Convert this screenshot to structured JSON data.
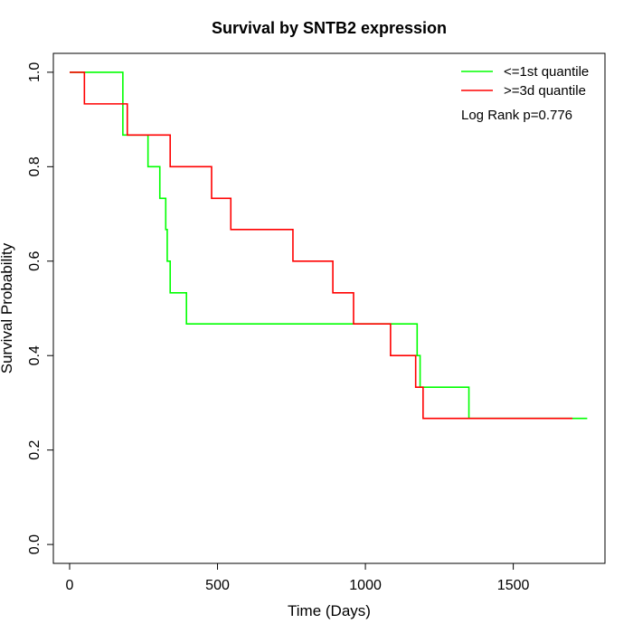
{
  "chart_data": {
    "type": "line",
    "title": "Survival by SNTB2 expression",
    "xlabel": "Time (Days)",
    "ylabel": "Survival Probability",
    "xlim": [
      -55,
      1810
    ],
    "ylim": [
      -0.04,
      1.04
    ],
    "x_ticks": [
      0,
      500,
      1000,
      1500
    ],
    "x_tick_labels": [
      "0",
      "500",
      "1000",
      "1500"
    ],
    "y_ticks": [
      0,
      0.2,
      0.4,
      0.6,
      0.8,
      1.0
    ],
    "y_tick_labels": [
      "0.0",
      "0.2",
      "0.4",
      "0.6",
      "0.8",
      "1.0"
    ],
    "grid": false,
    "legend_position": "top-right",
    "annotation": "Log Rank p=0.776",
    "series": [
      {
        "name": "<=1st quantile",
        "color": "#00ff00",
        "step": true,
        "x": [
          0,
          180,
          265,
          305,
          325,
          330,
          340,
          395,
          1175,
          1185,
          1350,
          1750
        ],
        "y": [
          1.0,
          0.867,
          0.8,
          0.733,
          0.667,
          0.6,
          0.533,
          0.467,
          0.4,
          0.333,
          0.267,
          0.267
        ]
      },
      {
        "name": ">=3d quantile",
        "color": "#ff0000",
        "step": true,
        "x": [
          0,
          50,
          195,
          340,
          480,
          545,
          755,
          890,
          960,
          1085,
          1170,
          1195,
          1700
        ],
        "y": [
          1.0,
          0.933,
          0.867,
          0.8,
          0.733,
          0.667,
          0.6,
          0.533,
          0.467,
          0.4,
          0.333,
          0.267,
          0.267
        ]
      }
    ]
  }
}
